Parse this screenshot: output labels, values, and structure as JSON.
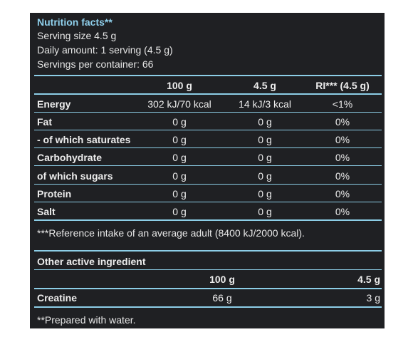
{
  "header": {
    "title": "Nutrition facts**",
    "serving_size": "Serving size 4.5 g",
    "daily_amount": "Daily amount: 1 serving (4.5 g)",
    "servings_per_container": "Servings per container: 66"
  },
  "nutrition_table": {
    "columns": [
      "100 g",
      "4.5 g",
      "RI*** (4.5 g)"
    ],
    "rows": [
      {
        "name": "Energy",
        "per100": "302 kJ/70 kcal",
        "perServing": "14 kJ/3 kcal",
        "ri": "<1%"
      },
      {
        "name": "Fat",
        "per100": "0 g",
        "perServing": "0 g",
        "ri": "0%"
      },
      {
        "name": "- of which saturates",
        "per100": "0 g",
        "perServing": "0 g",
        "ri": "0%"
      },
      {
        "name": "Carbohydrate",
        "per100": "0 g",
        "perServing": "0 g",
        "ri": "0%"
      },
      {
        "name": "of which sugars",
        "per100": "0 g",
        "perServing": "0 g",
        "ri": "0%"
      },
      {
        "name": "Protein",
        "per100": "0 g",
        "perServing": "0 g",
        "ri": "0%"
      },
      {
        "name": "Salt",
        "per100": "0 g",
        "perServing": "0 g",
        "ri": "0%"
      }
    ],
    "footnote": "***Reference intake of an average adult (8400 kJ/2000 kcal)."
  },
  "other_ingredients": {
    "title": "Other active ingredient",
    "columns": [
      "100 g",
      "4.5 g"
    ],
    "rows": [
      {
        "name": "Creatine",
        "per100": "66 g",
        "perServing": "3 g"
      }
    ]
  },
  "footer_note": "**Prepared with water.",
  "colors": {
    "panel_background": "#1f2023",
    "accent": "#8ccde6",
    "text": "#ececec"
  }
}
